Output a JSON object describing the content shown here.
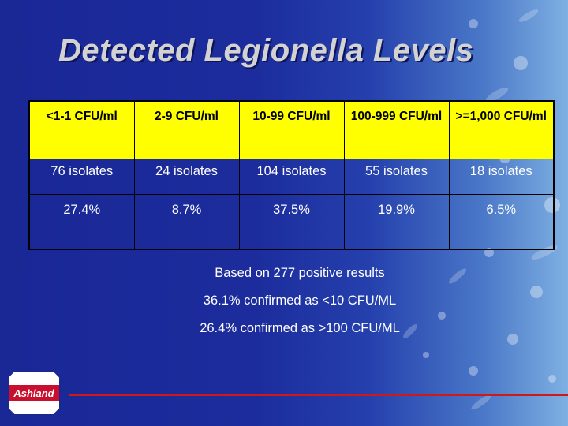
{
  "slide": {
    "title": "Detected Legionella Levels",
    "table": {
      "headers": [
        "<1-1 CFU/ml",
        "2-9 CFU/ml",
        "10-99 CFU/ml",
        "100-999 CFU/ml",
        ">=1,000 CFU/ml"
      ],
      "isolates": [
        "76 isolates",
        "24 isolates",
        "104 isolates",
        "55 isolates",
        "18 isolates"
      ],
      "percentages": [
        "27.4%",
        "8.7%",
        "37.5%",
        "19.9%",
        "6.5%"
      ]
    },
    "notes": [
      "Based on 277 positive results",
      "36.1% confirmed as <10 CFU/ML",
      "26.4% confirmed as >100 CFU/ML"
    ],
    "logo_text": "Ashland",
    "colors": {
      "background": "#1c2c9c",
      "header_fill": "#ffff00",
      "accent_line": "#d01818"
    }
  }
}
